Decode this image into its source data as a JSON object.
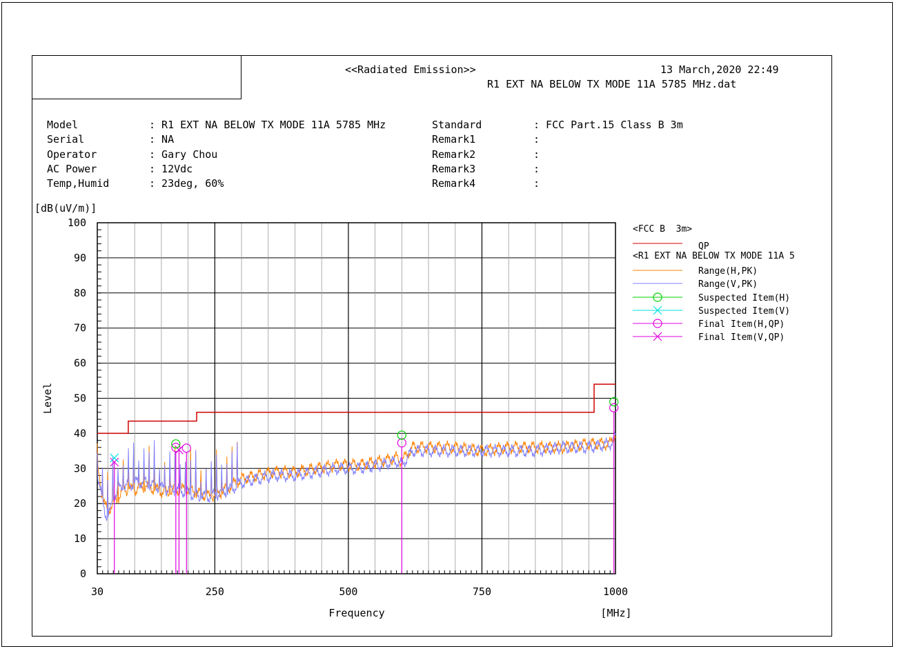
{
  "header": {
    "title": "<<Radiated Emission>>",
    "datetime": "13 March,2020 22:49",
    "filename": "R1 EXT NA BELOW TX MODE 11A 5785 MHz.dat"
  },
  "info": {
    "left": [
      {
        "label": "Model",
        "value": ": R1 EXT NA BELOW TX MODE 11A 5785 MHz"
      },
      {
        "label": "Serial",
        "value": ": NA"
      },
      {
        "label": "Operator",
        "value": ": Gary Chou"
      },
      {
        "label": "AC Power",
        "value": ": 12Vdc"
      },
      {
        "label": "Temp,Humid",
        "value": ": 23deg, 60%"
      }
    ],
    "right": [
      {
        "label": "Standard",
        "value": ": FCC Part.15 Class B 3m"
      },
      {
        "label": "Remark1",
        "value": ":"
      },
      {
        "label": "Remark2",
        "value": ":"
      },
      {
        "label": "Remark3",
        "value": ":"
      },
      {
        "label": "Remark4",
        "value": ":"
      }
    ]
  },
  "chart_data": {
    "type": "line",
    "ylabel": "Level",
    "yunit": "[dB(uV/m)]",
    "xlabel": "Frequency",
    "xunit": "[MHz]",
    "xlim": [
      30,
      1000
    ],
    "ylim": [
      0,
      100
    ],
    "xticks": [
      30,
      250,
      500,
      750,
      1000
    ],
    "yticks": [
      0,
      10,
      20,
      30,
      40,
      50,
      60,
      70,
      80,
      90,
      100
    ],
    "grid": true,
    "legend_position": "right",
    "legend": {
      "group1": "<FCC B  3m>",
      "group2": "<R1 EXT NA BELOW TX MODE 11A 5",
      "entries": [
        {
          "name": "QP",
          "color": "#d00000",
          "marker": "line"
        },
        {
          "name": "Range(H,PK)",
          "color": "#ff8000",
          "marker": "line"
        },
        {
          "name": "Range(V,PK)",
          "color": "#7f7fff",
          "marker": "line"
        },
        {
          "name": "Suspected Item(H)",
          "color": "#00d000",
          "marker": "circle"
        },
        {
          "name": "Suspected Item(V)",
          "color": "#00e0e0",
          "marker": "x"
        },
        {
          "name": "Final Item(H,QP)",
          "color": "#e000e0",
          "marker": "circle"
        },
        {
          "name": "Final Item(V,QP)",
          "color": "#e000e0",
          "marker": "x"
        }
      ]
    },
    "limit_qp": {
      "name": "QP",
      "color": "#d00000",
      "steps": [
        [
          30,
          40
        ],
        [
          88,
          40
        ],
        [
          88,
          43.5
        ],
        [
          216,
          43.5
        ],
        [
          216,
          46
        ],
        [
          960,
          46
        ],
        [
          960,
          54
        ],
        [
          1000,
          54
        ]
      ]
    },
    "range_h_pk": {
      "name": "Range(H,PK)",
      "color": "#ff8000",
      "x": [
        30,
        35,
        40,
        45,
        50,
        55,
        60,
        70,
        80,
        90,
        100,
        120,
        140,
        160,
        180,
        200,
        220,
        240,
        260,
        280,
        300,
        330,
        360,
        400,
        440,
        480,
        520,
        560,
        590,
        600,
        620,
        660,
        700,
        750,
        800,
        850,
        900,
        950,
        990,
        1000
      ],
      "y": [
        30,
        27,
        22,
        19,
        18,
        19,
        20,
        22,
        24,
        24,
        24,
        25,
        24,
        23,
        24,
        24,
        23,
        22,
        23,
        25,
        27,
        28,
        29,
        29,
        30,
        31,
        31,
        32,
        33,
        32,
        36,
        36,
        36,
        35,
        36,
        36,
        36,
        37,
        37,
        40
      ]
    },
    "range_v_pk": {
      "name": "Range(V,PK)",
      "color": "#7f7fff",
      "x": [
        30,
        35,
        40,
        45,
        50,
        55,
        60,
        70,
        80,
        90,
        100,
        120,
        140,
        160,
        180,
        200,
        220,
        240,
        260,
        280,
        300,
        330,
        360,
        400,
        440,
        480,
        520,
        560,
        590,
        600,
        620,
        660,
        700,
        750,
        800,
        850,
        900,
        950,
        990,
        1000
      ],
      "y": [
        29,
        25,
        20,
        17,
        17,
        18,
        22,
        24,
        25,
        25,
        26,
        26,
        25,
        24,
        24,
        23,
        22,
        22,
        23,
        24,
        26,
        27,
        28,
        28,
        29,
        30,
        30,
        31,
        32,
        31,
        35,
        35,
        35,
        35,
        35,
        35,
        36,
        36,
        37,
        39
      ]
    },
    "suspected_h": {
      "name": "Suspected Item(H)",
      "color": "#00d000",
      "points": [
        [
          177,
          37
        ],
        [
          600,
          39.5
        ],
        [
          997,
          49
        ]
      ]
    },
    "suspected_v": {
      "name": "Suspected Item(V)",
      "color": "#00e0e0",
      "points": [
        [
          62,
          33
        ]
      ]
    },
    "final_h_qp": {
      "name": "Final Item(H,QP)",
      "color": "#e000e0",
      "points": [
        [
          177,
          36
        ],
        [
          197,
          35.8
        ],
        [
          600,
          37.3
        ],
        [
          997,
          47.3
        ]
      ]
    },
    "final_v_qp": {
      "name": "Final Item(V,QP)",
      "color": "#e000e0",
      "points": [
        [
          62,
          31.8
        ],
        [
          183,
          35.3
        ]
      ]
    }
  }
}
